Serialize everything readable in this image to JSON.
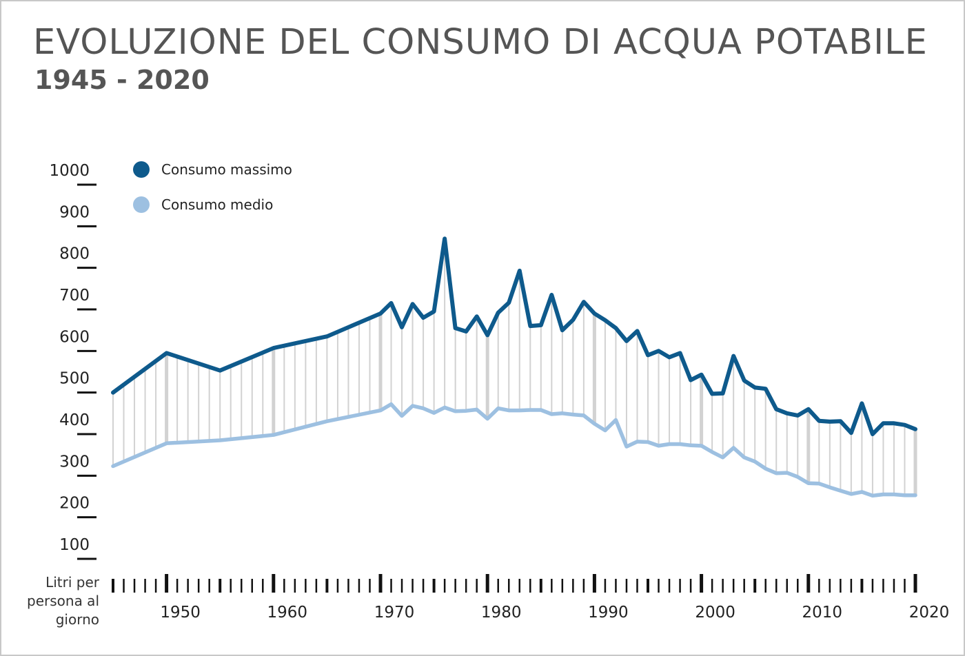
{
  "chart_data": {
    "type": "line",
    "title": "EVOLUZIONE DEL CONSUMO DI ACQUA POTABILE",
    "subtitle": "1945 - 2020",
    "ylabel": "Litri per persona al giorno",
    "xlabel": "",
    "xlim": [
      1945,
      2020
    ],
    "ylim": [
      100,
      1000
    ],
    "grid": false,
    "legend_position": "top-left",
    "colors": {
      "max": "#0e5a8c",
      "avg": "#9dc0e1",
      "drop": "#d2d2d2"
    },
    "x_ticks": [
      "1950",
      "1960",
      "1970",
      "1980",
      "1990",
      "2000",
      "2010",
      "2020"
    ],
    "y_ticks": [
      "1000",
      "900",
      "800",
      "700",
      "600",
      "500",
      "400",
      "300",
      "200",
      "100"
    ],
    "series": [
      {
        "name": "Consumo massimo",
        "points": [
          [
            1945,
            500
          ],
          [
            1950,
            595
          ],
          [
            1955,
            553
          ],
          [
            1960,
            607
          ],
          [
            1965,
            635
          ],
          [
            1970,
            690
          ],
          [
            1971,
            715
          ],
          [
            1972,
            657
          ],
          [
            1973,
            713
          ],
          [
            1974,
            680
          ],
          [
            1975,
            695
          ],
          [
            1976,
            870
          ],
          [
            1977,
            655
          ],
          [
            1978,
            647
          ],
          [
            1979,
            683
          ],
          [
            1980,
            638
          ],
          [
            1981,
            692
          ],
          [
            1982,
            716
          ],
          [
            1983,
            793
          ],
          [
            1984,
            660
          ],
          [
            1985,
            662
          ],
          [
            1986,
            735
          ],
          [
            1987,
            650
          ],
          [
            1988,
            675
          ],
          [
            1989,
            718
          ],
          [
            1990,
            690
          ],
          [
            1991,
            674
          ],
          [
            1992,
            655
          ],
          [
            1993,
            624
          ],
          [
            1994,
            648
          ],
          [
            1995,
            590
          ],
          [
            1996,
            600
          ],
          [
            1997,
            585
          ],
          [
            1998,
            595
          ],
          [
            1999,
            530
          ],
          [
            2000,
            543
          ],
          [
            2001,
            497
          ],
          [
            2002,
            498
          ],
          [
            2003,
            588
          ],
          [
            2004,
            529
          ],
          [
            2005,
            512
          ],
          [
            2006,
            509
          ],
          [
            2007,
            460
          ],
          [
            2008,
            450
          ],
          [
            2009,
            445
          ],
          [
            2010,
            460
          ],
          [
            2011,
            432
          ],
          [
            2012,
            430
          ],
          [
            2013,
            431
          ],
          [
            2014,
            403
          ],
          [
            2015,
            474
          ],
          [
            2016,
            400
          ],
          [
            2017,
            426
          ],
          [
            2018,
            426
          ],
          [
            2019,
            422
          ],
          [
            2020,
            412
          ]
        ]
      },
      {
        "name": "Consumo medio",
        "points": [
          [
            1945,
            323
          ],
          [
            1950,
            378
          ],
          [
            1955,
            385
          ],
          [
            1960,
            398
          ],
          [
            1965,
            431
          ],
          [
            1970,
            457
          ],
          [
            1971,
            472
          ],
          [
            1972,
            444
          ],
          [
            1973,
            468
          ],
          [
            1974,
            462
          ],
          [
            1975,
            451
          ],
          [
            1976,
            464
          ],
          [
            1977,
            455
          ],
          [
            1978,
            456
          ],
          [
            1979,
            459
          ],
          [
            1980,
            437
          ],
          [
            1981,
            462
          ],
          [
            1982,
            457
          ],
          [
            1983,
            457
          ],
          [
            1984,
            458
          ],
          [
            1985,
            458
          ],
          [
            1986,
            448
          ],
          [
            1987,
            450
          ],
          [
            1988,
            447
          ],
          [
            1989,
            445
          ],
          [
            1990,
            425
          ],
          [
            1991,
            409
          ],
          [
            1992,
            434
          ],
          [
            1993,
            370
          ],
          [
            1994,
            382
          ],
          [
            1995,
            381
          ],
          [
            1996,
            372
          ],
          [
            1997,
            376
          ],
          [
            1998,
            376
          ],
          [
            1999,
            373
          ],
          [
            2000,
            372
          ],
          [
            2001,
            357
          ],
          [
            2002,
            344
          ],
          [
            2003,
            367
          ],
          [
            2004,
            344
          ],
          [
            2005,
            334
          ],
          [
            2006,
            317
          ],
          [
            2007,
            306
          ],
          [
            2008,
            307
          ],
          [
            2009,
            297
          ],
          [
            2010,
            282
          ],
          [
            2011,
            281
          ],
          [
            2012,
            272
          ],
          [
            2013,
            264
          ],
          [
            2014,
            256
          ],
          [
            2015,
            261
          ],
          [
            2016,
            252
          ],
          [
            2017,
            255
          ],
          [
            2018,
            255
          ],
          [
            2019,
            253
          ],
          [
            2020,
            253
          ]
        ]
      }
    ]
  }
}
